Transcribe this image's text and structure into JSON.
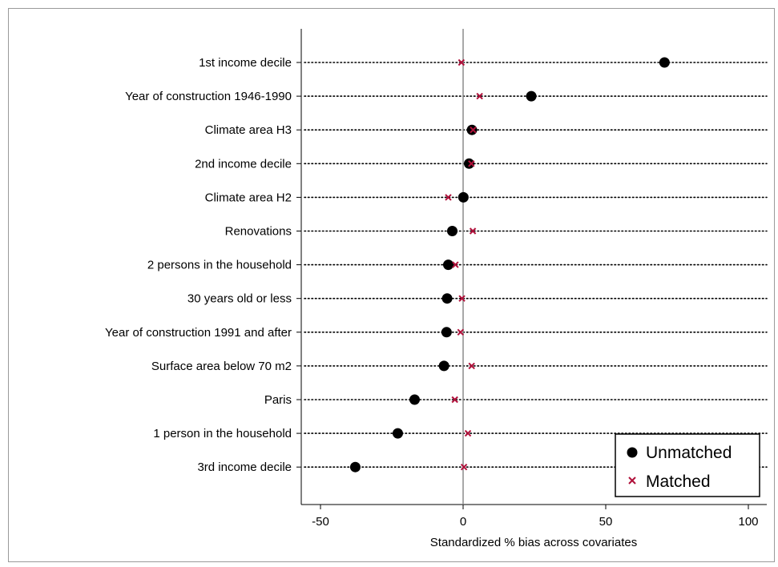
{
  "chart_data": {
    "type": "scatter",
    "title": "",
    "xlabel": "Standardized % bias across covariates",
    "ylabel": "",
    "xlim": [
      -57,
      107
    ],
    "xticks": [
      -50,
      0,
      50,
      100
    ],
    "grid": "dotted horizontal lines per covariate",
    "legend_position": "bottom-right",
    "categories": [
      "1st income decile",
      "Year of construction 1946-1990",
      "Climate area H3",
      "2nd income decile",
      "Climate area H2",
      "Renovations",
      "2 persons in the household",
      "30 years old or less",
      "Year of construction 1991 and after",
      "Surface area below 70 m2",
      "Paris",
      "1 person in the household",
      "3rd income decile"
    ],
    "series": [
      {
        "name": "Unmatched",
        "marker": "filled-circle",
        "color": "#000000",
        "values": [
          70.6,
          23.9,
          3.1,
          2.1,
          0.1,
          -3.8,
          -5.2,
          -5.6,
          -5.8,
          -6.7,
          -17.0,
          -22.9,
          -37.8
        ]
      },
      {
        "name": "Matched",
        "marker": "x-cross",
        "color": "#b0103a",
        "values": [
          -0.6,
          5.8,
          3.5,
          2.9,
          -5.2,
          3.4,
          -2.7,
          -0.4,
          -0.9,
          3.0,
          -2.9,
          1.7,
          0.3
        ]
      }
    ]
  }
}
